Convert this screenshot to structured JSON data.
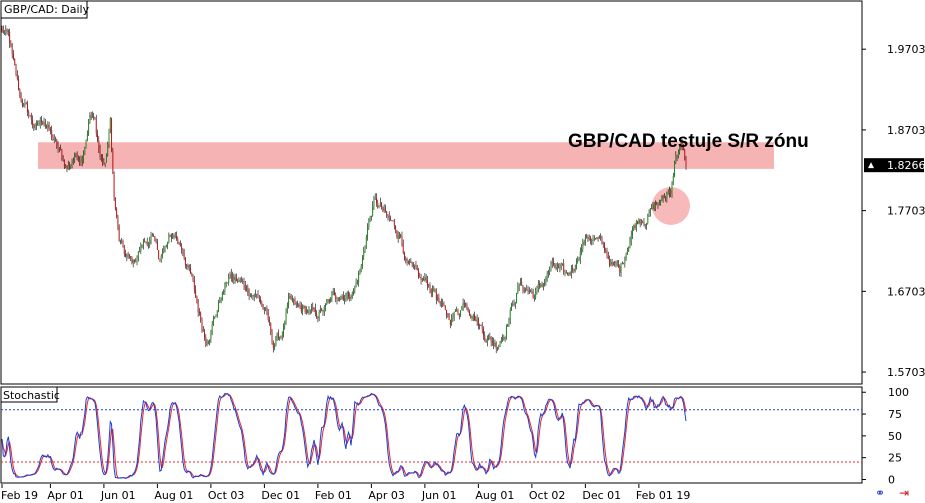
{
  "chart_data": [
    {
      "type": "candlestick",
      "title": "GBP/CAD: Daily",
      "annotation": "GBP/CAD testuje S/R zónu",
      "y_ticks": [
        "1.9703",
        "1.8703",
        "1.7703",
        "1.6703",
        "1.5703"
      ],
      "y_tick_values": [
        1.9703,
        1.8703,
        1.7703,
        1.6703,
        1.5703
      ],
      "ylim": [
        1.5555,
        2.03
      ],
      "current_price": "1.8266",
      "current_price_value": 1.8266,
      "sr_zone": [
        1.822,
        1.855
      ],
      "x_ticks": [
        "Feb 19",
        "Apr 01",
        "Jun 01",
        "Aug 01",
        "Oct 03",
        "Dec 01",
        "Feb 01",
        "Apr 03",
        "Jun 01",
        "Aug 01",
        "Oct 02",
        "Dec 01",
        "Feb 01 19"
      ],
      "x_tick_index": [
        0,
        38,
        80,
        122,
        164,
        206,
        248,
        290,
        332,
        374,
        416,
        458,
        500
      ],
      "bar_count": 538,
      "price_anchors": [
        [
          0,
          1.993
        ],
        [
          5,
          1.985
        ],
        [
          9,
          1.95
        ],
        [
          14,
          1.912
        ],
        [
          20,
          1.892
        ],
        [
          27,
          1.87
        ],
        [
          33,
          1.885
        ],
        [
          39,
          1.862
        ],
        [
          45,
          1.842
        ],
        [
          51,
          1.823
        ],
        [
          57,
          1.837
        ],
        [
          63,
          1.84
        ],
        [
          69,
          1.89
        ],
        [
          73,
          1.878
        ],
        [
          77,
          1.838
        ],
        [
          81,
          1.825
        ],
        [
          85,
          1.88
        ],
        [
          88,
          1.785
        ],
        [
          92,
          1.732
        ],
        [
          97,
          1.712
        ],
        [
          103,
          1.705
        ],
        [
          110,
          1.728
        ],
        [
          117,
          1.737
        ],
        [
          123,
          1.713
        ],
        [
          129,
          1.725
        ],
        [
          135,
          1.741
        ],
        [
          142,
          1.722
        ],
        [
          148,
          1.69
        ],
        [
          154,
          1.648
        ],
        [
          160,
          1.611
        ],
        [
          166,
          1.635
        ],
        [
          172,
          1.664
        ],
        [
          178,
          1.688
        ],
        [
          184,
          1.683
        ],
        [
          190,
          1.677
        ],
        [
          196,
          1.67
        ],
        [
          202,
          1.662
        ],
        [
          208,
          1.638
        ],
        [
          213,
          1.604
        ],
        [
          220,
          1.62
        ],
        [
          225,
          1.655
        ],
        [
          232,
          1.648
        ],
        [
          239,
          1.646
        ],
        [
          246,
          1.64
        ],
        [
          253,
          1.648
        ],
        [
          260,
          1.662
        ],
        [
          266,
          1.669
        ],
        [
          272,
          1.666
        ],
        [
          277,
          1.675
        ],
        [
          282,
          1.7
        ],
        [
          287,
          1.75
        ],
        [
          292,
          1.78
        ],
        [
          297,
          1.775
        ],
        [
          302,
          1.76
        ],
        [
          307,
          1.752
        ],
        [
          313,
          1.74
        ],
        [
          318,
          1.705
        ],
        [
          323,
          1.692
        ],
        [
          328,
          1.683
        ],
        [
          334,
          1.68
        ],
        [
          340,
          1.67
        ],
        [
          346,
          1.645
        ],
        [
          352,
          1.637
        ],
        [
          358,
          1.647
        ],
        [
          364,
          1.66
        ],
        [
          370,
          1.645
        ],
        [
          376,
          1.626
        ],
        [
          382,
          1.612
        ],
        [
          388,
          1.605
        ],
        [
          394,
          1.62
        ],
        [
          400,
          1.65
        ],
        [
          406,
          1.677
        ],
        [
          412,
          1.673
        ],
        [
          418,
          1.665
        ],
        [
          424,
          1.678
        ],
        [
          431,
          1.7
        ],
        [
          437,
          1.695
        ],
        [
          443,
          1.688
        ],
        [
          449,
          1.702
        ],
        [
          455,
          1.728
        ],
        [
          461,
          1.74
        ],
        [
          467,
          1.733
        ],
        [
          473,
          1.722
        ],
        [
          479,
          1.703
        ],
        [
          485,
          1.695
        ],
        [
          490,
          1.723
        ],
        [
          495,
          1.748
        ],
        [
          500,
          1.762
        ],
        [
          505,
          1.763
        ],
        [
          510,
          1.77
        ],
        [
          515,
          1.778
        ],
        [
          520,
          1.785
        ],
        [
          525,
          1.797
        ],
        [
          529,
          1.842
        ],
        [
          533,
          1.85
        ],
        [
          537,
          1.826
        ]
      ]
    },
    {
      "type": "line",
      "title": "Stochastic",
      "y_ticks": [
        "100",
        "75",
        "50",
        "25",
        "0"
      ],
      "y_tick_values": [
        100,
        75,
        50,
        25,
        0
      ],
      "ylim": [
        -4,
        106
      ],
      "levels": [
        80,
        20
      ],
      "series_colors": [
        "#1a3fd6",
        "#e8262a"
      ],
      "k_cycle_period_bars": 19
    }
  ],
  "controls": {
    "link_icon": "link-icon",
    "close_icon": "close-x-icon"
  },
  "colors": {
    "up_candle": "#1f8a1f",
    "down_candle": "#c0171b",
    "wick": "#000000",
    "zone": "#f08080",
    "grid_dots": "#b0b0b0"
  }
}
